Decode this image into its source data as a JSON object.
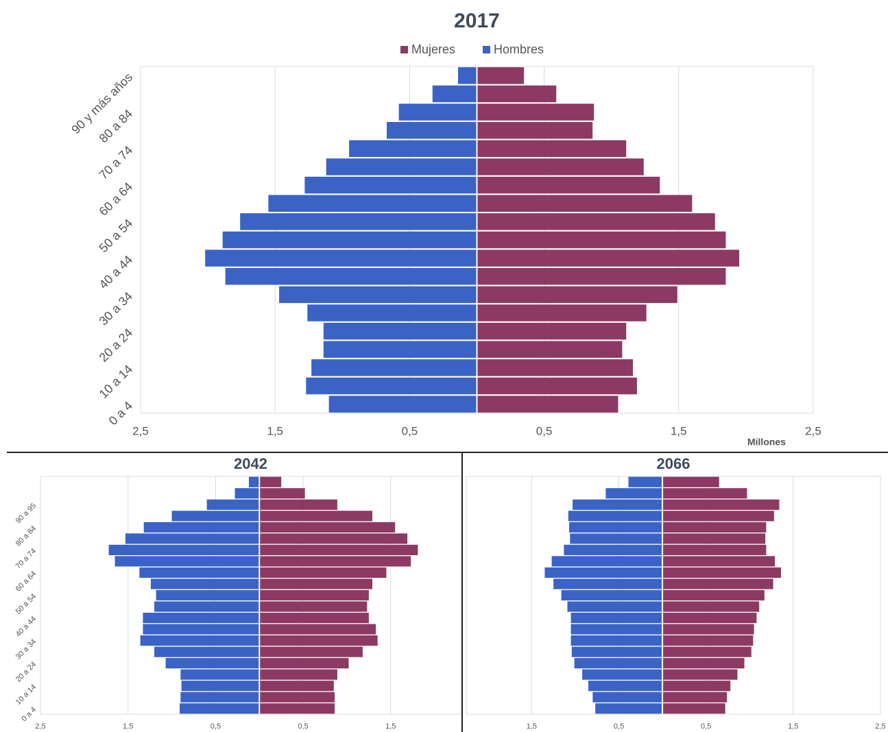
{
  "chart_data": [
    {
      "type": "bar",
      "orientation": "horizontal",
      "title": "2017",
      "x_label": "Millones",
      "legend": "top",
      "grid": true,
      "categories": [
        "0 a 4",
        null,
        "10 a 14",
        null,
        "20 a 24",
        null,
        "30 a 34",
        null,
        "40 a 44",
        null,
        "50 a 54",
        null,
        "60 a 64",
        null,
        "70 a 74",
        null,
        "80 a 84",
        null,
        "90 y más años"
      ],
      "series": [
        {
          "name": "Mujeres",
          "color": "#8c3a63",
          "values": [
            1.05,
            1.19,
            1.16,
            1.08,
            1.11,
            1.26,
            1.49,
            1.85,
            1.95,
            1.85,
            1.77,
            1.6,
            1.36,
            1.24,
            1.11,
            0.86,
            0.87,
            0.59,
            0.35
          ]
        },
        {
          "name": "Hombres",
          "color": "#3b63c6",
          "values": [
            -1.1,
            -1.27,
            -1.23,
            -1.14,
            -1.14,
            -1.26,
            -1.47,
            -1.87,
            -2.02,
            -1.89,
            -1.76,
            -1.55,
            -1.28,
            -1.12,
            -0.95,
            -0.67,
            -0.58,
            -0.33,
            -0.14
          ]
        }
      ],
      "xlim": [
        -2.5,
        2.5
      ],
      "xticks": [
        {
          "value": -2.5,
          "label": "2,5"
        },
        {
          "value": -1.5,
          "label": "1,5"
        },
        {
          "value": -0.5,
          "label": "0,5"
        },
        {
          "value": 0.5,
          "label": "0,5"
        },
        {
          "value": 1.5,
          "label": "1,5"
        },
        {
          "value": 2.5,
          "label": "2,5"
        }
      ]
    },
    {
      "type": "bar",
      "orientation": "horizontal",
      "title": "2042",
      "grid": true,
      "categories": [
        "0 a 4",
        null,
        "10 a 14",
        null,
        "20 a 24",
        null,
        "30 a 34",
        null,
        "40 a 44",
        null,
        "50 a 54",
        null,
        "60 a 64",
        null,
        "70 a 74",
        null,
        "80 a 84",
        null,
        "90 a 95",
        null,
        null
      ],
      "series": [
        {
          "name": "Mujeres",
          "color": "#8c3a63",
          "values": [
            0.86,
            0.86,
            0.85,
            0.89,
            1.02,
            1.18,
            1.35,
            1.33,
            1.25,
            1.23,
            1.25,
            1.29,
            1.45,
            1.73,
            1.81,
            1.69,
            1.55,
            1.29,
            0.89,
            0.52,
            0.25
          ]
        },
        {
          "name": "Hombres",
          "color": "#3b63c6",
          "values": [
            -0.91,
            -0.9,
            -0.89,
            -0.9,
            -1.07,
            -1.2,
            -1.36,
            -1.33,
            -1.33,
            -1.2,
            -1.18,
            -1.24,
            -1.37,
            -1.65,
            -1.72,
            -1.53,
            -1.32,
            -1.0,
            -0.6,
            -0.28,
            -0.12
          ]
        }
      ],
      "xlim": [
        -2.5,
        2.3
      ],
      "xticks": [
        {
          "value": -2.5,
          "label": "2,5"
        },
        {
          "value": -1.5,
          "label": "1,5"
        },
        {
          "value": -0.5,
          "label": "0,5"
        },
        {
          "value": 0.5,
          "label": "0,5"
        },
        {
          "value": 1.5,
          "label": "1,5"
        }
      ]
    },
    {
      "type": "bar",
      "orientation": "horizontal",
      "title": "2066",
      "grid": true,
      "categories": [
        null,
        null,
        null,
        null,
        null,
        null,
        null,
        null,
        null,
        null,
        null,
        null,
        null,
        null,
        null,
        null,
        null,
        null,
        null,
        null,
        null
      ],
      "series": [
        {
          "name": "Mujeres",
          "color": "#8c3a63",
          "values": [
            0.72,
            0.74,
            0.78,
            0.86,
            0.94,
            1.02,
            1.04,
            1.05,
            1.08,
            1.11,
            1.17,
            1.27,
            1.36,
            1.29,
            1.19,
            1.18,
            1.19,
            1.28,
            1.34,
            0.97,
            0.65
          ]
        },
        {
          "name": "Hombres",
          "color": "#3b63c6",
          "values": [
            -0.77,
            -0.8,
            -0.85,
            -0.92,
            -1.01,
            -1.04,
            -1.05,
            -1.05,
            -1.05,
            -1.09,
            -1.16,
            -1.25,
            -1.35,
            -1.27,
            -1.13,
            -1.06,
            -1.07,
            -1.08,
            -1.03,
            -0.65,
            -0.39
          ]
        }
      ],
      "xlim": [
        -2.25,
        2.5
      ],
      "xticks": [
        {
          "value": -1.5,
          "label": "1,5"
        },
        {
          "value": -0.5,
          "label": "0,5"
        },
        {
          "value": 0.5,
          "label": "0,5"
        },
        {
          "value": 1.5,
          "label": "1,5"
        },
        {
          "value": 2.5,
          "label": "2,5"
        }
      ]
    }
  ]
}
